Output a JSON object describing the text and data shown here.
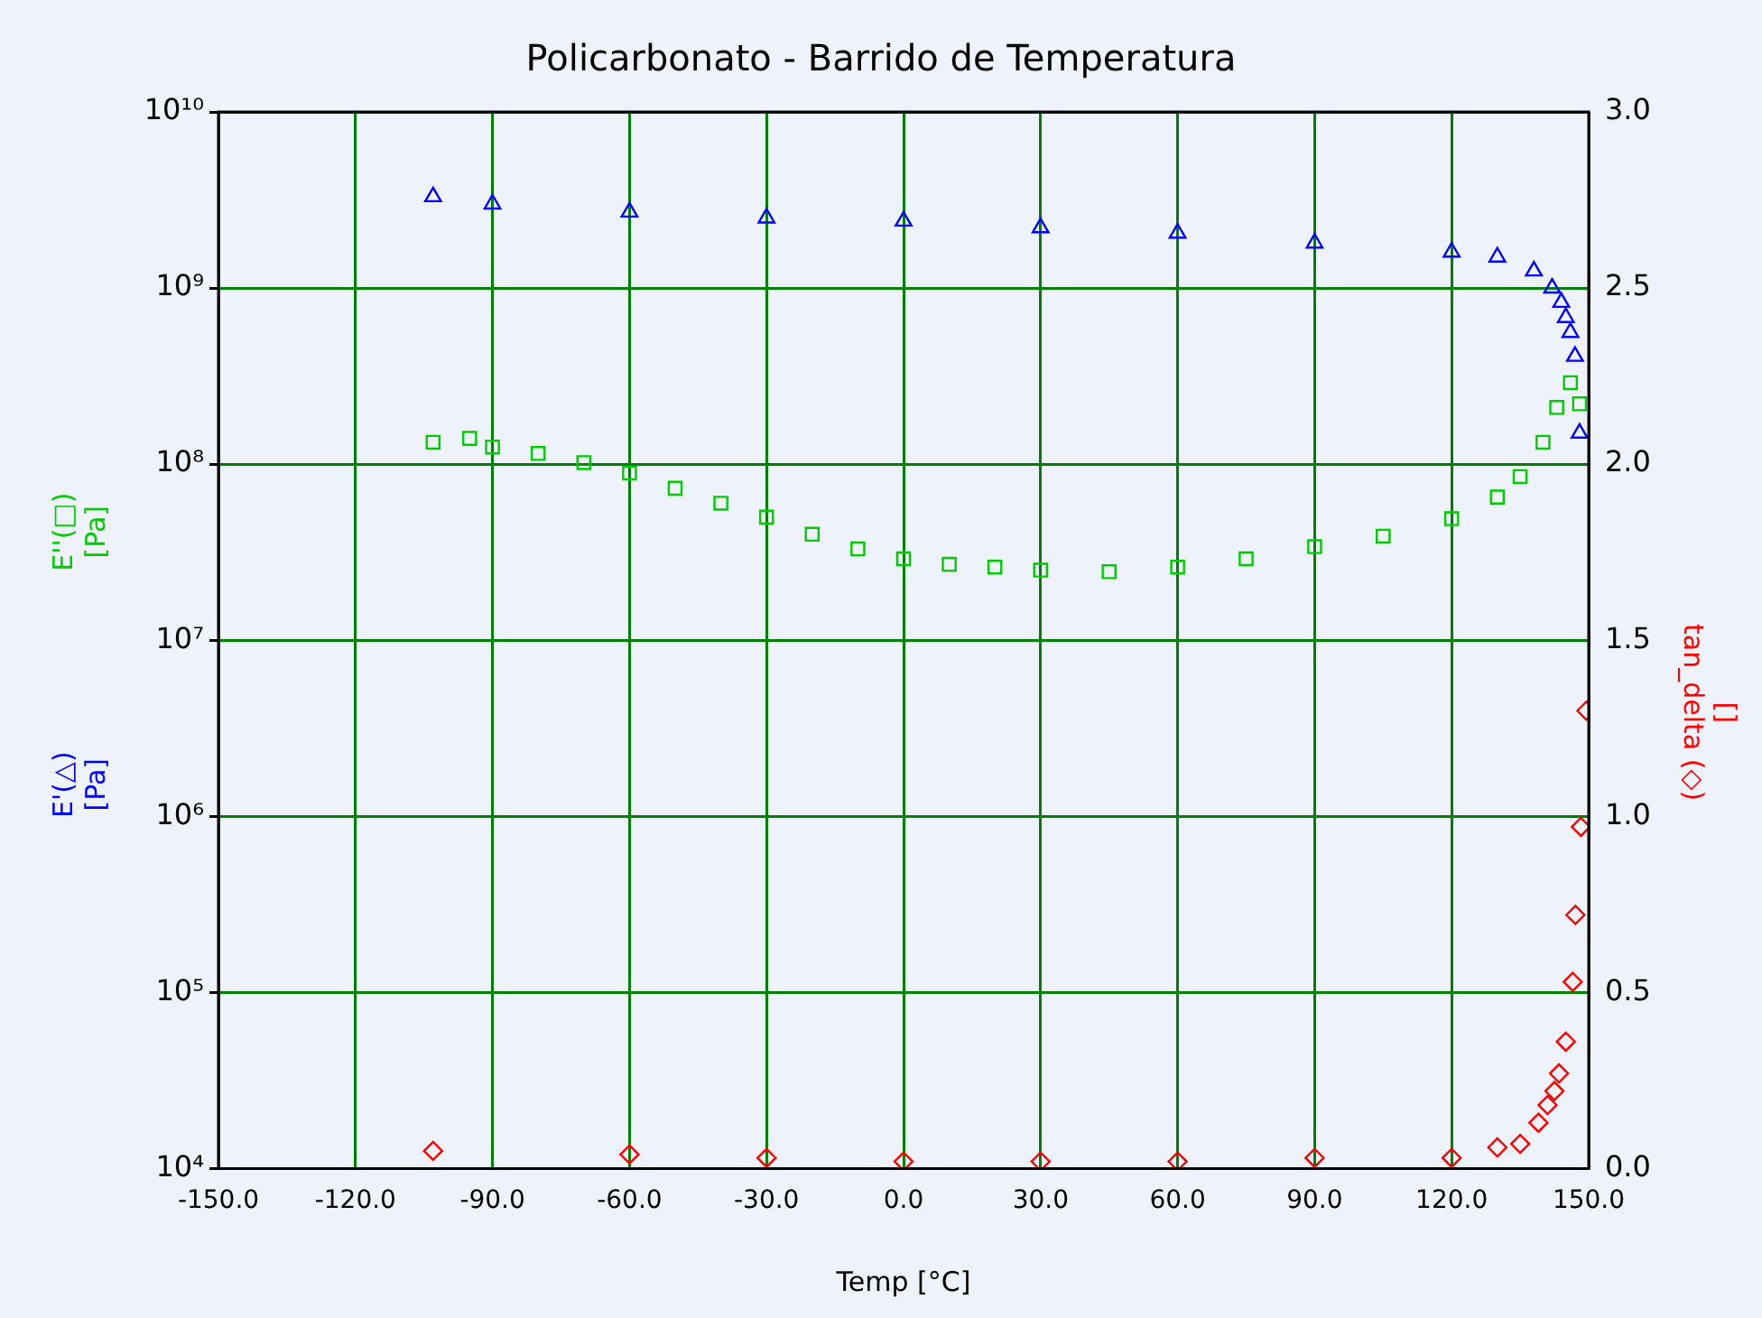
{
  "chart_data": {
    "type": "scatter",
    "title": "Policarbonato - Barrido de Temperatura",
    "xlabel": "Temp [°C]",
    "log": "y",
    "grid": true,
    "legend": false,
    "xlim": [
      -150,
      150
    ],
    "xticks": [
      {
        "value": -150,
        "label": "-150.0"
      },
      {
        "value": -120,
        "label": "-120.0"
      },
      {
        "value": -90,
        "label": "-90.0"
      },
      {
        "value": -60,
        "label": "-60.0"
      },
      {
        "value": -30,
        "label": "-30.0"
      },
      {
        "value": 0,
        "label": "0.0"
      },
      {
        "value": 30,
        "label": "30.0"
      },
      {
        "value": 60,
        "label": "60.0"
      },
      {
        "value": 90,
        "label": "90.0"
      },
      {
        "value": 120,
        "label": "120.0"
      },
      {
        "value": 150,
        "label": "150.0"
      }
    ],
    "ylim": [
      10000,
      10000000000
    ],
    "yticks": [
      {
        "value": 10000,
        "label": "10⁴"
      },
      {
        "value": 100000,
        "label": "10⁵"
      },
      {
        "value": 1000000,
        "label": "10⁶"
      },
      {
        "value": 10000000,
        "label": "10⁷"
      },
      {
        "value": 100000000,
        "label": "10⁸"
      },
      {
        "value": 1000000000,
        "label": "10⁹"
      },
      {
        "value": 10000000000,
        "label": "10¹⁰"
      }
    ],
    "y2lim": [
      0,
      3
    ],
    "y2ticks": [
      {
        "value": 0,
        "label": "0.0"
      },
      {
        "value": 0.5,
        "label": "0.5"
      },
      {
        "value": 1,
        "label": "1.0"
      },
      {
        "value": 1.5,
        "label": "1.5"
      },
      {
        "value": 2,
        "label": "2.0"
      },
      {
        "value": 2.5,
        "label": "2.5"
      },
      {
        "value": 3,
        "label": "3.0"
      }
    ],
    "series": [
      {
        "name": "E'(△) [Pa]",
        "color": "#0000ff",
        "marker": "triangle",
        "x": [
          -103,
          -90,
          -60,
          -30,
          0,
          30,
          60,
          90,
          120,
          130,
          138,
          142,
          144,
          145,
          146,
          147,
          148
        ],
        "values": [
          3300000000,
          3000000000,
          2700000000,
          2500000000,
          2400000000,
          2200000000,
          2050000000,
          1800000000,
          1600000000,
          1500000000,
          1250000000,
          1000000000,
          830000000,
          680000000,
          560000000,
          410000000,
          150000000
        ]
      },
      {
        "name": "E''(□) [Pa]",
        "color": "#00cc00",
        "marker": "square",
        "x": [
          -103,
          -95,
          -90,
          -80,
          -70,
          -60,
          -50,
          -40,
          -30,
          -20,
          -10,
          0,
          10,
          20,
          30,
          45,
          60,
          75,
          90,
          105,
          120,
          130,
          135,
          140,
          143,
          146,
          148
        ],
        "values": [
          133000000,
          140000000,
          125000000,
          115000000,
          102000000,
          89000000,
          73000000,
          60000000,
          50000000,
          40000000,
          33000000,
          29000000,
          27000000,
          26000000,
          25000000,
          24500000,
          26000000,
          29000000,
          34000000,
          39000000,
          49000000,
          65000000,
          85000000,
          133000000,
          210000000,
          290000000,
          220000000
        ]
      },
      {
        "name": "tan_delta (◇) []",
        "color": "#ff0000",
        "marker": "diamond",
        "axis": "y2",
        "x": [
          -103,
          -60,
          -30,
          0,
          30,
          60,
          90,
          120,
          130,
          135,
          139,
          141,
          142.5,
          143.5,
          145,
          146.5,
          147.1,
          148.3,
          149.5
        ],
        "values": [
          0.05,
          0.04,
          0.03,
          0.02,
          0.02,
          0.02,
          0.03,
          0.03,
          0.06,
          0.07,
          0.13,
          0.18,
          0.22,
          0.27,
          0.36,
          0.53,
          0.72,
          0.97,
          1.3
        ]
      }
    ]
  }
}
